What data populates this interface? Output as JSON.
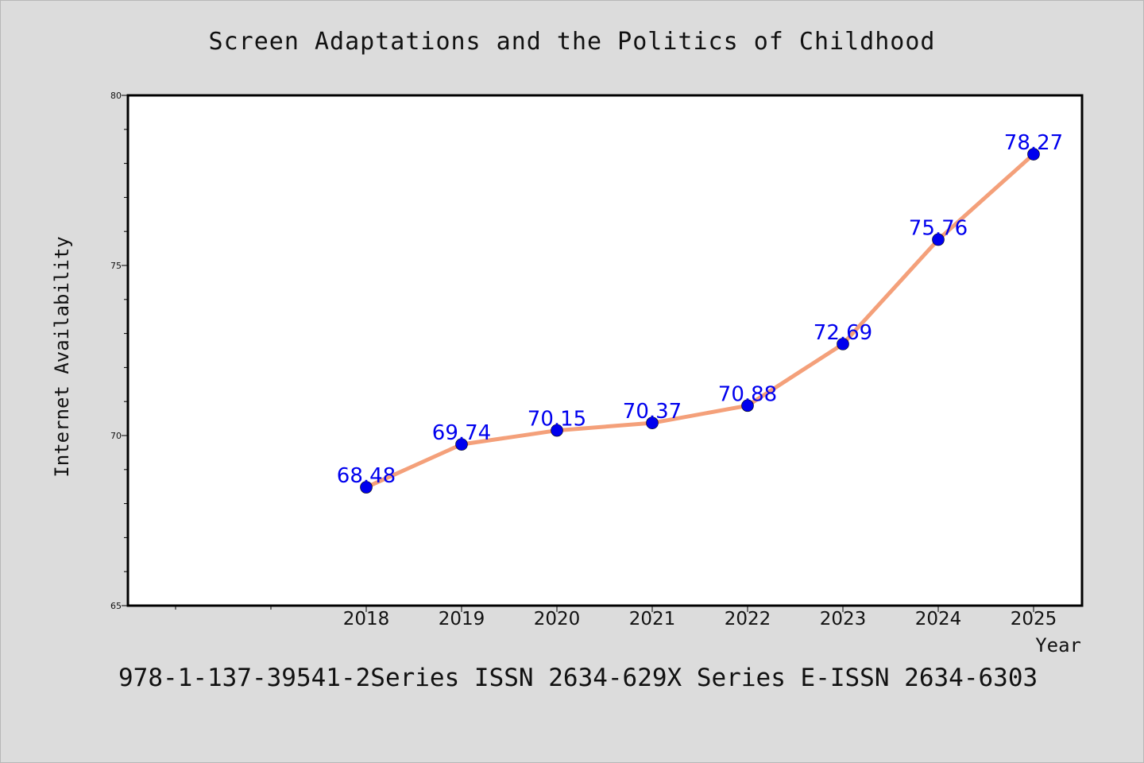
{
  "chart_data": {
    "type": "line",
    "title": "Screen Adaptations and the Politics of Childhood",
    "xlabel": "Year",
    "ylabel": "Internet Availability",
    "categories": [
      "2018",
      "2019",
      "2020",
      "2021",
      "2022",
      "2023",
      "2024",
      "2025"
    ],
    "values": [
      68.48,
      69.74,
      70.15,
      70.37,
      70.88,
      72.69,
      75.76,
      78.27
    ],
    "value_labels": [
      "68.48",
      "69.74",
      "70.15",
      "70.37",
      "70.88",
      "72.69",
      "75.76",
      "78.27"
    ],
    "ylim": [
      65,
      80
    ],
    "yticks": [
      "65",
      "70",
      "75",
      "80"
    ],
    "grid": false,
    "colors": {
      "line": "#f4a07a",
      "marker": "#0000ee",
      "label": "#0000ee"
    }
  },
  "footer": {
    "text": "978-1-137-39541-2Series ISSN 2634-629X Series E-ISSN 2634-6303"
  }
}
